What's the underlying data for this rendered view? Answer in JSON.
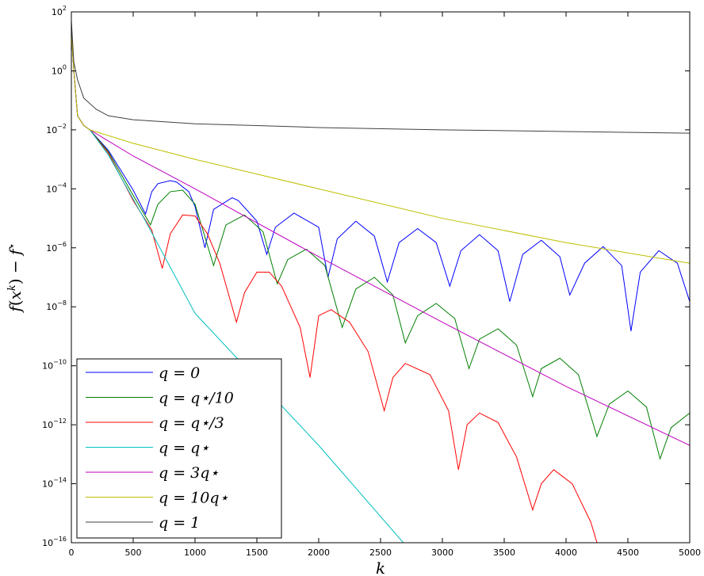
{
  "chart_data": {
    "type": "line",
    "xlabel": "k",
    "ylabel": "f(x^k) − f^⋆",
    "xlim": [
      0,
      5000
    ],
    "ylim": [
      1e-16,
      100
    ],
    "yscale": "log",
    "grid": false,
    "legend_position": "bottom-left",
    "x_ticks": [
      "0",
      "500",
      "1000",
      "1500",
      "2000",
      "2500",
      "3000",
      "3500",
      "4000",
      "4500",
      "5000"
    ],
    "y_ticks": [
      {
        "base": "10",
        "exp": "2",
        "value": 2
      },
      {
        "base": "10",
        "exp": "0",
        "value": 0
      },
      {
        "base": "10",
        "exp": "−2",
        "value": -2
      },
      {
        "base": "10",
        "exp": "−4",
        "value": -4
      },
      {
        "base": "10",
        "exp": "−6",
        "value": -6
      },
      {
        "base": "10",
        "exp": "−8",
        "value": -8
      },
      {
        "base": "10",
        "exp": "−10",
        "value": -10
      },
      {
        "base": "10",
        "exp": "−12",
        "value": -12
      },
      {
        "base": "10",
        "exp": "−14",
        "value": -14
      },
      {
        "base": "10",
        "exp": "−16",
        "value": -16
      }
    ],
    "series": [
      {
        "name": "q = 0",
        "color": "#0000ff",
        "x": [
          0,
          20,
          50,
          100,
          150,
          300,
          500,
          600,
          650,
          700,
          800,
          850,
          950,
          1000,
          1080,
          1150,
          1300,
          1350,
          1500,
          1580,
          1650,
          1800,
          2000,
          2075,
          2150,
          2300,
          2450,
          2555,
          2650,
          2800,
          2950,
          3060,
          3150,
          3300,
          3450,
          3545,
          3650,
          3800,
          3950,
          4030,
          4150,
          4300,
          4450,
          4525,
          4600,
          4750,
          4900,
          5000
        ],
        "y": [
          20,
          1,
          0.03,
          0.014,
          0.01,
          0.002,
          9e-05,
          1.4e-05,
          8e-05,
          0.00015,
          0.00019,
          0.00017,
          8e-05,
          2.5e-05,
          1e-06,
          2e-05,
          5e-05,
          4e-05,
          8e-06,
          6e-07,
          5e-06,
          1.5e-05,
          5e-06,
          1e-07,
          2e-06,
          8e-06,
          2.5e-06,
          7e-08,
          1.5e-06,
          4.5e-06,
          1.5e-06,
          5e-08,
          8e-07,
          2.8e-06,
          8e-07,
          1.5e-08,
          6e-07,
          1.8e-06,
          5e-07,
          2.5e-08,
          3e-07,
          1.1e-06,
          2.5e-07,
          1.5e-09,
          1.5e-07,
          8e-07,
          3e-07,
          1.5e-08
        ]
      },
      {
        "name": "q = q⋆/10",
        "color": "#007f00",
        "x": [
          0,
          20,
          50,
          100,
          150,
          300,
          500,
          640,
          700,
          800,
          900,
          1000,
          1150,
          1250,
          1400,
          1550,
          1665,
          1750,
          1900,
          2050,
          2190,
          2300,
          2450,
          2600,
          2700,
          2800,
          2950,
          3100,
          3215,
          3300,
          3450,
          3600,
          3730,
          3800,
          3950,
          4100,
          4250,
          4350,
          4500,
          4650,
          4760,
          4850,
          5000
        ],
        "y": [
          20,
          1,
          0.03,
          0.014,
          0.01,
          0.0018,
          6e-05,
          6e-06,
          3e-05,
          8e-05,
          9e-05,
          3e-05,
          2.5e-07,
          6e-06,
          1.3e-05,
          3.5e-06,
          6e-08,
          4e-07,
          9e-07,
          2.5e-07,
          2e-09,
          4e-08,
          1e-07,
          2.5e-08,
          6e-10,
          5e-09,
          1.3e-08,
          4e-09,
          8e-11,
          8e-10,
          1.8e-09,
          5e-10,
          9e-12,
          8e-11,
          1.8e-10,
          5e-11,
          4e-13,
          5e-12,
          1.4e-11,
          4e-12,
          7e-14,
          8e-13,
          2.5e-12
        ]
      },
      {
        "name": "q = q⋆/3",
        "color": "#ff0000",
        "x": [
          0,
          20,
          50,
          100,
          150,
          300,
          500,
          650,
          735,
          800,
          900,
          1000,
          1100,
          1200,
          1335,
          1400,
          1500,
          1600,
          1700,
          1850,
          1930,
          2000,
          2100,
          2250,
          2400,
          2530,
          2600,
          2700,
          2900,
          3050,
          3130,
          3200,
          3300,
          3450,
          3600,
          3730,
          3800,
          3900,
          4050,
          4200,
          4250
        ],
        "y": [
          20,
          1,
          0.03,
          0.014,
          0.01,
          0.0016,
          4e-05,
          4e-06,
          2e-07,
          3e-06,
          1.3e-05,
          1.2e-05,
          3e-06,
          3e-07,
          3e-09,
          3e-08,
          1.5e-07,
          1.5e-07,
          5e-08,
          2e-09,
          4e-11,
          5e-09,
          8e-09,
          3e-09,
          3e-10,
          3e-12,
          4e-11,
          1.2e-10,
          5e-11,
          3e-12,
          3e-14,
          1e-12,
          2.5e-12,
          1.2e-12,
          8e-14,
          1.3e-15,
          1e-14,
          3e-14,
          1e-14,
          5e-16,
          1e-16
        ]
      },
      {
        "name": "q = q⋆",
        "color": "#00bfbf",
        "x": [
          0,
          20,
          50,
          100,
          150,
          300,
          600,
          1000,
          2000,
          3000,
          3190
        ],
        "y": [
          20,
          1,
          0.03,
          0.014,
          0.01,
          0.0014,
          8e-06,
          6e-09,
          2e-13,
          3e-18,
          1e-16
        ]
      },
      {
        "name": "q = 3q⋆",
        "color": "#bf00bf",
        "x": [
          0,
          20,
          50,
          100,
          150,
          500,
          1000,
          2000,
          3000,
          4000,
          5000
        ],
        "y": [
          20,
          1,
          0.03,
          0.014,
          0.01,
          0.0013,
          0.0001,
          5e-07,
          3e-09,
          2e-11,
          2e-13
        ]
      },
      {
        "name": "q = 10q⋆",
        "color": "#bfbf00",
        "x": [
          0,
          20,
          50,
          100,
          150,
          500,
          1000,
          2000,
          3000,
          4000,
          5000
        ],
        "y": [
          20,
          1,
          0.03,
          0.014,
          0.01,
          0.0035,
          0.001,
          0.0001,
          1e-05,
          1.5e-06,
          3e-07
        ]
      },
      {
        "name": "q = 1",
        "color": "#404040",
        "x": [
          0,
          20,
          50,
          100,
          200,
          300,
          500,
          1000,
          1500,
          2000,
          3000,
          4000,
          5000
        ],
        "y": [
          50,
          2,
          0.5,
          0.12,
          0.05,
          0.03,
          0.022,
          0.016,
          0.014,
          0.012,
          0.01,
          0.0088,
          0.0077
        ]
      }
    ],
    "legend": [
      {
        "label_a": "q",
        "label_eq": " = ",
        "label_b": "0"
      },
      {
        "label_a": "q",
        "label_eq": " = ",
        "label_b": "q⋆/10"
      },
      {
        "label_a": "q",
        "label_eq": " = ",
        "label_b": "q⋆/3"
      },
      {
        "label_a": "q",
        "label_eq": " = ",
        "label_b": "q⋆"
      },
      {
        "label_a": "q",
        "label_eq": " = ",
        "label_b": "3q⋆"
      },
      {
        "label_a": "q",
        "label_eq": " = ",
        "label_b": "10q⋆"
      },
      {
        "label_a": "q",
        "label_eq": " = ",
        "label_b": "1"
      }
    ],
    "ylabel_parts": {
      "f": "f",
      "lp": "(",
      "x": "x",
      "k": "k",
      "rp": ")",
      "minus": " − ",
      "f2": "f",
      "star": "⋆"
    }
  }
}
